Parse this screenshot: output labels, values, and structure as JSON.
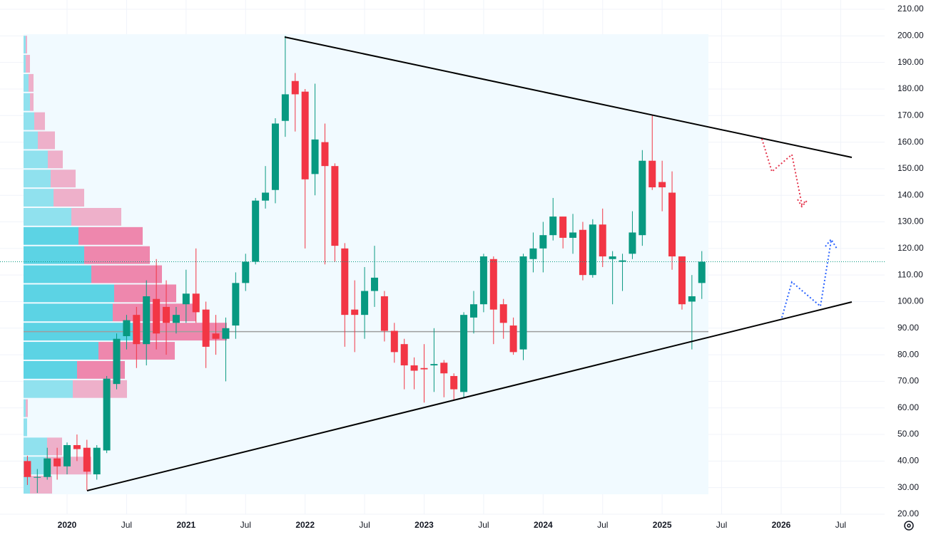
{
  "chart_data": {
    "type": "candlestick",
    "x": [
      "2019-09",
      "2019-10",
      "2019-11",
      "2019-12",
      "2020-01",
      "2020-02",
      "2020-03",
      "2020-04",
      "2020-05",
      "2020-06",
      "2020-07",
      "2020-08",
      "2020-09",
      "2020-10",
      "2020-11",
      "2020-12",
      "2021-01",
      "2021-02",
      "2021-03",
      "2021-04",
      "2021-05",
      "2021-06",
      "2021-07",
      "2021-08",
      "2021-09",
      "2021-10",
      "2021-11",
      "2021-12",
      "2022-01",
      "2022-02",
      "2022-03",
      "2022-04",
      "2022-05",
      "2022-06",
      "2022-07",
      "2022-08",
      "2022-09",
      "2022-10",
      "2022-11",
      "2022-12",
      "2023-01",
      "2023-02",
      "2023-03",
      "2023-04",
      "2023-05",
      "2023-06",
      "2023-07",
      "2023-08",
      "2023-09",
      "2023-10",
      "2023-11",
      "2023-12",
      "2024-01",
      "2024-02",
      "2024-03",
      "2024-04",
      "2024-05",
      "2024-06",
      "2024-07",
      "2024-08",
      "2024-09",
      "2024-10",
      "2024-11",
      "2024-12",
      "2025-01",
      "2025-02",
      "2025-03",
      "2025-04",
      "2025-05"
    ],
    "open": [
      40,
      34,
      34,
      41,
      38,
      46,
      45,
      35,
      44,
      69,
      87,
      95,
      84,
      101,
      98,
      92,
      99,
      103,
      97,
      88,
      86,
      91,
      107,
      115,
      138,
      142,
      168,
      183,
      179,
      148,
      160,
      151,
      120,
      97,
      95,
      104,
      102,
      89,
      84,
      76,
      75,
      76,
      77,
      72,
      66,
      94,
      99,
      116,
      99,
      91,
      82,
      116,
      120,
      125,
      132,
      124,
      127,
      110,
      129,
      116,
      115,
      118,
      125,
      153,
      145,
      141,
      117,
      100,
      107
    ],
    "high": [
      42,
      37,
      45,
      45,
      47,
      50,
      48,
      46,
      72,
      88,
      95,
      98,
      108,
      116,
      108,
      98,
      112,
      120,
      100,
      95,
      94,
      111,
      118,
      139,
      151,
      169,
      200,
      186,
      180,
      182,
      167,
      152,
      122,
      108,
      113,
      121,
      104,
      92,
      86,
      79,
      84,
      90,
      78,
      73,
      96,
      104,
      118,
      117,
      101,
      94,
      118,
      126,
      130,
      139,
      132,
      133,
      130,
      131,
      135,
      119,
      118,
      134,
      157,
      170,
      153,
      149,
      117,
      110,
      119
    ],
    "low": [
      31,
      28,
      33,
      33,
      35,
      40,
      29,
      33,
      43,
      67,
      82,
      75,
      76,
      82,
      80,
      88,
      92,
      92,
      75,
      80,
      70,
      86,
      104,
      114,
      135,
      137,
      162,
      164,
      120,
      140,
      114,
      115,
      83,
      81,
      86,
      98,
      85,
      77,
      67,
      67,
      62,
      66,
      64,
      63,
      64,
      88,
      96,
      84,
      86,
      80,
      78,
      111,
      111,
      123,
      120,
      118,
      108,
      109,
      113,
      99,
      104,
      116,
      121,
      142,
      134,
      112,
      97,
      82,
      101
    ],
    "close": [
      34,
      34,
      41,
      38,
      46,
      44.5,
      36,
      45,
      71,
      86,
      93,
      84,
      102,
      88,
      92,
      95,
      103,
      96,
      83,
      86,
      90,
      107,
      115,
      138,
      141,
      167,
      178,
      178,
      146,
      161,
      151,
      121,
      95,
      95,
      104,
      109,
      89,
      81,
      76,
      74,
      74.5,
      76.5,
      73,
      67,
      95,
      99,
      117,
      97,
      92,
      81,
      117,
      120,
      125,
      132,
      124,
      126,
      110,
      129,
      117,
      117,
      115.5,
      126,
      153,
      143,
      143,
      117,
      99,
      102,
      115
    ],
    "up_color": "#089981",
    "down_color": "#f23645",
    "ylim": [
      20,
      210
    ],
    "yticks": [
      {
        "value": 20,
        "label": "20.00"
      },
      {
        "value": 30,
        "label": "30.00"
      },
      {
        "value": 40,
        "label": "40.00"
      },
      {
        "value": 50,
        "label": "50.00"
      },
      {
        "value": 60,
        "label": "60.00"
      },
      {
        "value": 70,
        "label": "70.00"
      },
      {
        "value": 80,
        "label": "80.00"
      },
      {
        "value": 90,
        "label": "90.00"
      },
      {
        "value": 100,
        "label": "100.00"
      },
      {
        "value": 110,
        "label": "110.00"
      },
      {
        "value": 120,
        "label": "120.00"
      },
      {
        "value": 130,
        "label": "130.00"
      },
      {
        "value": 140,
        "label": "140.00"
      },
      {
        "value": 150,
        "label": "150.00"
      },
      {
        "value": 160,
        "label": "160.00"
      },
      {
        "value": 170,
        "label": "170.00"
      },
      {
        "value": 180,
        "label": "180.00"
      },
      {
        "value": 190,
        "label": "190.00"
      },
      {
        "value": 200,
        "label": "200.00"
      },
      {
        "value": 210,
        "label": "210.00"
      }
    ],
    "xlim": [
      "2019-06",
      "2026-11"
    ],
    "xticks": [
      {
        "value": "2020-01",
        "label": "2020"
      },
      {
        "value": "2020-07",
        "label": "Jul"
      },
      {
        "value": "2021-01",
        "label": "2021"
      },
      {
        "value": "2021-07",
        "label": "Jul"
      },
      {
        "value": "2022-01",
        "label": "2022"
      },
      {
        "value": "2022-07",
        "label": "Jul"
      },
      {
        "value": "2023-01",
        "label": "2023"
      },
      {
        "value": "2023-07",
        "label": "Jul"
      },
      {
        "value": "2024-01",
        "label": "2024"
      },
      {
        "value": "2024-07",
        "label": "Jul"
      },
      {
        "value": "2025-01",
        "label": "2025"
      },
      {
        "value": "2025-07",
        "label": "Jul"
      },
      {
        "value": "2026-01",
        "label": "2026"
      },
      {
        "value": "2026-07",
        "label": "Jul"
      }
    ],
    "grid": true,
    "volume_profile": {
      "bins": [
        27.5,
        34.7,
        41.9,
        49.1,
        56.3,
        63.5,
        70.7,
        77.9,
        85.1,
        92.3,
        99.5,
        106.7,
        113.9,
        121.1,
        128.3,
        135.5,
        142.7,
        149.9,
        157.1,
        164.3,
        171.5,
        178.7,
        185.9,
        193.1,
        200.3
      ],
      "up": [
        9,
        31,
        33,
        5,
        3,
        69,
        75,
        105,
        155,
        125,
        127,
        95,
        85,
        77,
        67,
        42,
        38,
        34,
        20,
        15,
        9,
        7,
        3,
        3
      ],
      "down": [
        31,
        64,
        21,
        0,
        3,
        76,
        67,
        107,
        130,
        117,
        87,
        99,
        92,
        90,
        70,
        43,
        35,
        21,
        24,
        15,
        5,
        7,
        6,
        2
      ],
      "up_color": "#00bcd4",
      "down_color": "#ec407a",
      "xlim": [
        0,
        960
      ],
      "value_area": [
        70.7,
        128.3
      ],
      "poc": 88.7,
      "poc_color": "#9e9e9e"
    }
  }
}
